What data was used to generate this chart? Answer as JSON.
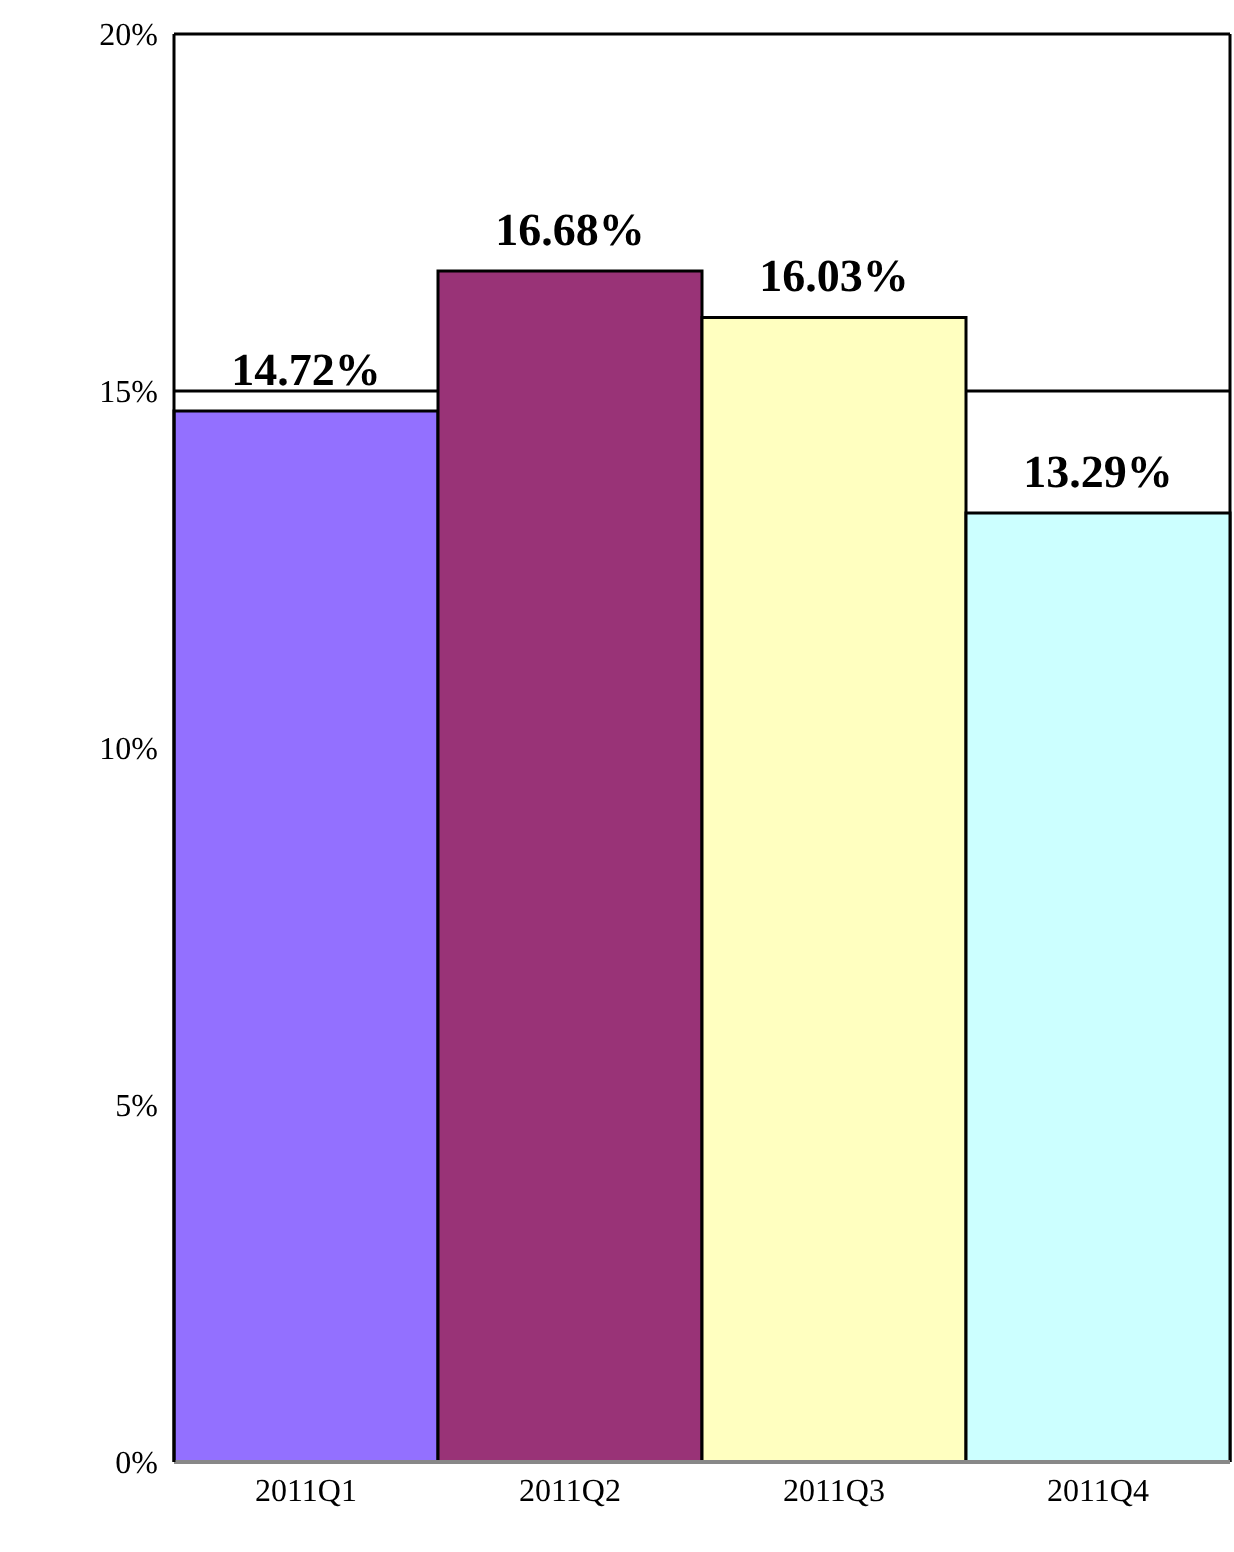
{
  "chart_data": {
    "type": "bar",
    "categories": [
      "2011Q1",
      "2011Q2",
      "2011Q3",
      "2011Q4"
    ],
    "values": [
      14.72,
      16.68,
      16.03,
      13.29
    ],
    "colors": [
      "#9370ff",
      "#993377",
      "#ffffc0",
      "#ccffff"
    ],
    "value_labels": [
      "14.72%",
      "16.68%",
      "16.03%",
      "13.29%"
    ],
    "ylim": [
      0,
      20
    ],
    "yticks": [
      {
        "value": 0,
        "label": "0%"
      },
      {
        "value": 5,
        "label": "5%"
      },
      {
        "value": 10,
        "label": "10%"
      },
      {
        "value": 15,
        "label": "15%"
      },
      {
        "value": 20,
        "label": "20%"
      }
    ],
    "grid": "y"
  }
}
